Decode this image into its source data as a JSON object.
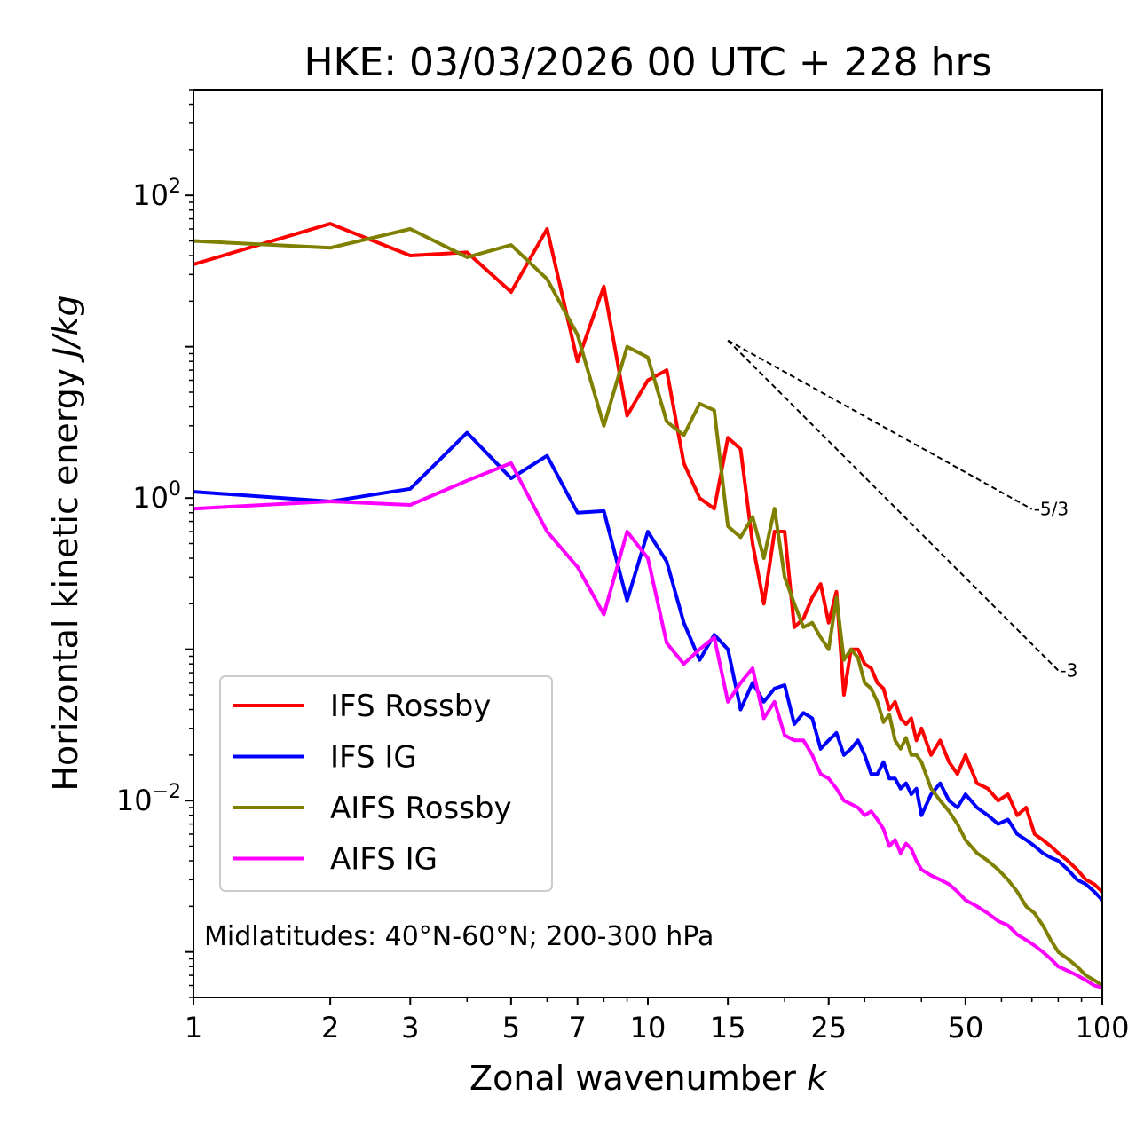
{
  "chart_data": {
    "type": "line",
    "title": "HKE: 03/03/2026 00 UTC + 228 hrs",
    "xlabel": "Zonal wavenumber",
    "xlabel_var": "k",
    "ylabel": "Horizontal kinetic energy",
    "ylabel_unit": "J/kg",
    "xscale": "log",
    "yscale": "log",
    "xlim": [
      1,
      100
    ],
    "ylim": [
      0.0005,
      500
    ],
    "x_ticks": [
      1,
      2,
      3,
      5,
      7,
      10,
      15,
      25,
      50,
      100
    ],
    "x_tick_labels": [
      "1",
      "2",
      "3",
      "5",
      "7",
      "10",
      "15",
      "25",
      "50",
      "100"
    ],
    "y_ticks": [
      {
        "value": 100,
        "base": "10",
        "exp": "2"
      },
      {
        "value": 1,
        "base": "10",
        "exp": "0"
      },
      {
        "value": 0.01,
        "base": "10",
        "exp": "−2"
      }
    ],
    "annotation": "Midlatitudes: 40°N-60°N; 200-300 hPa",
    "legend_position": "lower-left",
    "series": [
      {
        "name": "IFS Rossby",
        "color": "#ff0000",
        "x": [
          1,
          2,
          3,
          4,
          5,
          6,
          7,
          8,
          9,
          10,
          11,
          12,
          13,
          14,
          15,
          16,
          17,
          18,
          19,
          20,
          21,
          22,
          23,
          24,
          25,
          26,
          27,
          28,
          29,
          30,
          31,
          32,
          33,
          34,
          35,
          36,
          37,
          38,
          39,
          40,
          42,
          44,
          46,
          48,
          50,
          53,
          56,
          59,
          62,
          65,
          68,
          71,
          74,
          77,
          80,
          84,
          88,
          92,
          96,
          100
        ],
        "y": [
          35,
          65,
          40,
          42,
          23,
          60,
          8,
          25,
          3.5,
          6,
          7,
          1.7,
          1,
          0.85,
          2.5,
          2.1,
          0.5,
          0.2,
          0.6,
          0.6,
          0.14,
          0.16,
          0.22,
          0.27,
          0.15,
          0.24,
          0.05,
          0.1,
          0.1,
          0.08,
          0.075,
          0.06,
          0.055,
          0.04,
          0.045,
          0.035,
          0.032,
          0.035,
          0.025,
          0.03,
          0.02,
          0.025,
          0.018,
          0.015,
          0.02,
          0.013,
          0.012,
          0.01,
          0.011,
          0.008,
          0.009,
          0.006,
          0.0055,
          0.005,
          0.0045,
          0.004,
          0.0035,
          0.003,
          0.0028,
          0.0025
        ]
      },
      {
        "name": "IFS IG",
        "color": "#0000ff",
        "x": [
          1,
          2,
          3,
          4,
          5,
          6,
          7,
          8,
          9,
          10,
          11,
          12,
          13,
          14,
          15,
          16,
          17,
          18,
          19,
          20,
          21,
          22,
          23,
          24,
          25,
          26,
          27,
          28,
          29,
          30,
          31,
          32,
          33,
          34,
          35,
          36,
          37,
          38,
          39,
          40,
          42,
          44,
          46,
          48,
          50,
          53,
          56,
          59,
          62,
          65,
          68,
          71,
          74,
          77,
          80,
          84,
          88,
          92,
          96,
          100
        ],
        "y": [
          1.1,
          0.95,
          1.15,
          2.7,
          1.35,
          1.9,
          0.8,
          0.82,
          0.21,
          0.6,
          0.38,
          0.15,
          0.085,
          0.125,
          0.1,
          0.04,
          0.06,
          0.045,
          0.055,
          0.058,
          0.032,
          0.038,
          0.035,
          0.022,
          0.025,
          0.028,
          0.02,
          0.022,
          0.025,
          0.02,
          0.015,
          0.015,
          0.018,
          0.014,
          0.014,
          0.012,
          0.013,
          0.011,
          0.012,
          0.008,
          0.011,
          0.013,
          0.01,
          0.009,
          0.011,
          0.009,
          0.008,
          0.007,
          0.0075,
          0.006,
          0.0055,
          0.005,
          0.0045,
          0.0042,
          0.004,
          0.0035,
          0.003,
          0.0028,
          0.0025,
          0.0022
        ]
      },
      {
        "name": "AIFS Rossby",
        "color": "#808000",
        "x": [
          1,
          2,
          3,
          4,
          5,
          6,
          7,
          8,
          9,
          10,
          11,
          12,
          13,
          14,
          15,
          16,
          17,
          18,
          19,
          20,
          21,
          22,
          23,
          24,
          25,
          26,
          27,
          28,
          29,
          30,
          31,
          32,
          33,
          34,
          35,
          36,
          37,
          38,
          39,
          40,
          42,
          44,
          46,
          48,
          50,
          53,
          56,
          59,
          62,
          65,
          68,
          71,
          74,
          77,
          80,
          84,
          88,
          92,
          96,
          100
        ],
        "y": [
          50,
          45,
          60,
          39,
          47,
          28,
          12,
          3,
          10,
          8.5,
          3.2,
          2.6,
          4.2,
          3.8,
          0.65,
          0.55,
          0.75,
          0.4,
          0.85,
          0.3,
          0.2,
          0.14,
          0.15,
          0.12,
          0.1,
          0.22,
          0.085,
          0.1,
          0.088,
          0.06,
          0.055,
          0.045,
          0.033,
          0.037,
          0.025,
          0.022,
          0.026,
          0.02,
          0.02,
          0.018,
          0.012,
          0.01,
          0.0085,
          0.007,
          0.0055,
          0.0045,
          0.004,
          0.0035,
          0.003,
          0.0025,
          0.002,
          0.0018,
          0.0015,
          0.0012,
          0.001,
          0.0009,
          0.0008,
          0.0007,
          0.00065,
          0.0006
        ]
      },
      {
        "name": "AIFS IG",
        "color": "#ff00ff",
        "x": [
          1,
          2,
          3,
          4,
          5,
          6,
          7,
          8,
          9,
          10,
          11,
          12,
          13,
          14,
          15,
          16,
          17,
          18,
          19,
          20,
          21,
          22,
          23,
          24,
          25,
          26,
          27,
          28,
          29,
          30,
          31,
          32,
          33,
          34,
          35,
          36,
          37,
          38,
          39,
          40,
          42,
          44,
          46,
          48,
          50,
          53,
          56,
          59,
          62,
          65,
          68,
          71,
          74,
          77,
          80,
          84,
          88,
          92,
          96,
          100
        ],
        "y": [
          0.85,
          0.95,
          0.9,
          1.3,
          1.7,
          0.6,
          0.35,
          0.17,
          0.6,
          0.4,
          0.11,
          0.08,
          0.1,
          0.12,
          0.045,
          0.06,
          0.075,
          0.035,
          0.045,
          0.027,
          0.025,
          0.025,
          0.02,
          0.015,
          0.014,
          0.012,
          0.01,
          0.0095,
          0.009,
          0.008,
          0.0085,
          0.0075,
          0.0065,
          0.005,
          0.0055,
          0.0045,
          0.0052,
          0.0048,
          0.004,
          0.0035,
          0.0032,
          0.003,
          0.0028,
          0.0025,
          0.0022,
          0.002,
          0.0018,
          0.0016,
          0.0015,
          0.0013,
          0.0012,
          0.0011,
          0.001,
          0.0009,
          0.0008,
          0.00075,
          0.0007,
          0.00065,
          0.0006,
          0.00058
        ]
      }
    ],
    "reference_slopes": [
      {
        "label": "-5/3",
        "slope": -1.6667,
        "x_start": 15,
        "x_end": 70,
        "y_start": 11
      },
      {
        "label": "-3",
        "slope": -3,
        "x_start": 15,
        "x_end": 80,
        "y_start": 11
      }
    ]
  }
}
